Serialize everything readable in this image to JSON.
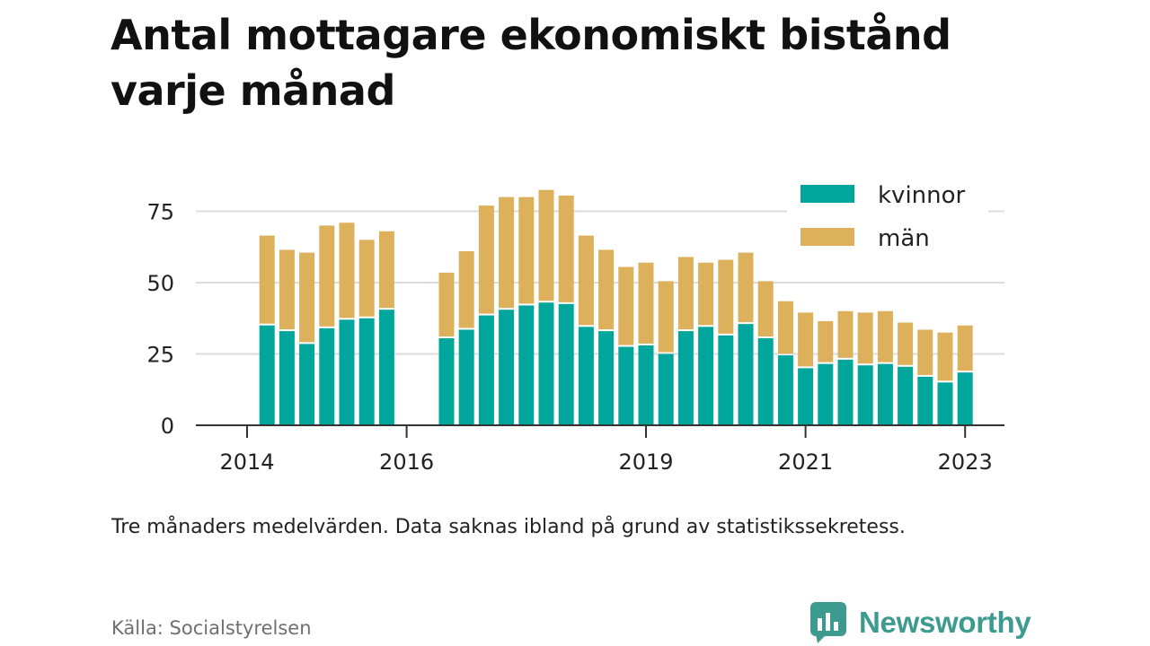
{
  "chart_data": {
    "type": "bar",
    "stacked": true,
    "title": "Antal mottagare ekonomiskt bistånd varje månad",
    "note": "Tre månaders medelvärden. Data saknas ibland på grund av statistikssekretess.",
    "source": "Källa: Socialstyrelsen",
    "ylim": [
      0,
      85
    ],
    "yticks": [
      0,
      25,
      50,
      75
    ],
    "grid": true,
    "legend_position": "top-right",
    "x_tick_labels": [
      "2014",
      "2016",
      "2019",
      "2021",
      "2023"
    ],
    "x_tick_dates": [
      "2014-01",
      "2016-01",
      "2019-01",
      "2021-01",
      "2023-01"
    ],
    "colors": {
      "kvinnor": "#00a69c",
      "män": "#ddb15c"
    },
    "periods": [
      "2014-04",
      "2014-07",
      "2014-10",
      "2015-01",
      "2015-04",
      "2015-07",
      "2015-10",
      "2016-07",
      "2016-10",
      "2017-01",
      "2017-04",
      "2017-07",
      "2017-10",
      "2018-01",
      "2018-04",
      "2018-07",
      "2018-10",
      "2019-01",
      "2019-04",
      "2019-07",
      "2019-10",
      "2020-01",
      "2020-04",
      "2020-07",
      "2020-10",
      "2021-01",
      "2021-04",
      "2021-07",
      "2021-10",
      "2022-01",
      "2022-04",
      "2022-07",
      "2022-10",
      "2023-01"
    ],
    "series": [
      {
        "name": "kvinnor",
        "values": [
          35,
          33,
          28.5,
          34,
          37,
          37.5,
          40.5,
          30.5,
          33.5,
          38.5,
          40.5,
          42,
          43,
          42.5,
          34.5,
          33,
          27.5,
          28,
          25,
          33,
          34.5,
          31.5,
          35.5,
          30.5,
          24.5,
          20,
          21.5,
          23,
          21,
          21.5,
          20.5,
          17,
          15,
          18.5
        ]
      },
      {
        "name": "män",
        "values": [
          31.5,
          28.5,
          32,
          36,
          34,
          27.5,
          27.5,
          23,
          27.5,
          38.5,
          39.5,
          38,
          39.5,
          38,
          32,
          28.5,
          28,
          29,
          25.5,
          26,
          22.5,
          26.5,
          25,
          20,
          19,
          19.5,
          15,
          17,
          18.5,
          18.5,
          15.5,
          16.5,
          17.5,
          16.5
        ]
      }
    ]
  },
  "logo": {
    "name": "Newsworthy"
  }
}
